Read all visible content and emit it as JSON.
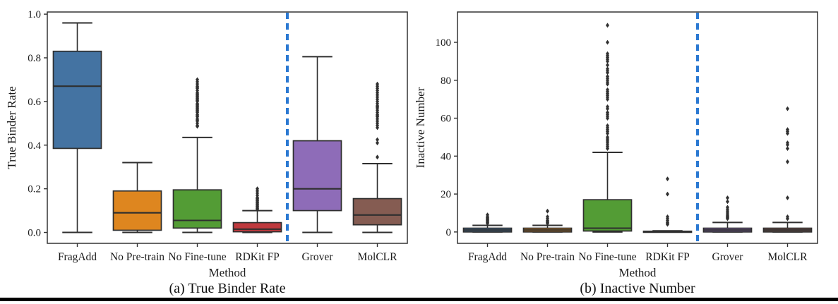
{
  "figure": {
    "bottom_rule_color": "#000000",
    "background": "#ffffff"
  },
  "style": {
    "edge_color": "#2f2f2f",
    "outlier_color": "#2f2f2f",
    "separator_color": "#2b79d2",
    "spine_color": "#333333"
  },
  "chart_data": [
    {
      "type": "boxplot",
      "panel": "a",
      "caption": "(a) True Binder Rate",
      "xlabel": "Method",
      "ylabel": "True Binder Rate",
      "categories": [
        "FragAdd",
        "No Pre-train",
        "No Fine-tune",
        "RDKit FP",
        "Grover",
        "MolCLR"
      ],
      "ytick_labels": [
        "0.0",
        "0.2",
        "0.4",
        "0.6",
        "0.8",
        "1.0"
      ],
      "yticks": [
        0.0,
        0.2,
        0.4,
        0.6,
        0.8,
        1.0
      ],
      "ylim": [
        -0.05,
        1.01
      ],
      "separator_after_index": 3,
      "legend": "none",
      "grid": false,
      "boxes": [
        {
          "label": "FragAdd",
          "color": "#4473a2",
          "whislo": 0.0,
          "q1": 0.385,
          "med": 0.67,
          "q3": 0.83,
          "whishi": 0.96,
          "outliers": []
        },
        {
          "label": "No Pre-train",
          "color": "#de861f",
          "whislo": 0.0,
          "q1": 0.01,
          "med": 0.09,
          "q3": 0.19,
          "whishi": 0.32,
          "outliers": []
        },
        {
          "label": "No Fine-tune",
          "color": "#539c35",
          "whislo": 0.0,
          "q1": 0.02,
          "med": 0.055,
          "q3": 0.195,
          "whishi": 0.435,
          "outliers": [
            0.486,
            0.49,
            0.5,
            0.51,
            0.515,
            0.52,
            0.53,
            0.535,
            0.54,
            0.55,
            0.555,
            0.56,
            0.565,
            0.57,
            0.575,
            0.58,
            0.585,
            0.59,
            0.6,
            0.605,
            0.61,
            0.615,
            0.62,
            0.625,
            0.63,
            0.635,
            0.64,
            0.65,
            0.66,
            0.665,
            0.67,
            0.68,
            0.69,
            0.7
          ]
        },
        {
          "label": "RDKit FP",
          "color": "#bf3a3e",
          "whislo": 0.0,
          "q1": 0.003,
          "med": 0.015,
          "q3": 0.045,
          "whishi": 0.1,
          "outliers": [
            0.105,
            0.11,
            0.115,
            0.12,
            0.125,
            0.13,
            0.135,
            0.14,
            0.145,
            0.15,
            0.155,
            0.16,
            0.17,
            0.18,
            0.19,
            0.2
          ]
        },
        {
          "label": "Grover",
          "color": "#8e6cb8",
          "whislo": 0.0,
          "q1": 0.1,
          "med": 0.2,
          "q3": 0.42,
          "whishi": 0.805,
          "outliers": []
        },
        {
          "label": "MolCLR",
          "color": "#855c52",
          "whislo": 0.0,
          "q1": 0.035,
          "med": 0.08,
          "q3": 0.155,
          "whishi": 0.315,
          "outliers": [
            0.345,
            0.41,
            0.425,
            0.48,
            0.49,
            0.5,
            0.51,
            0.52,
            0.53,
            0.535,
            0.54,
            0.55,
            0.56,
            0.57,
            0.575,
            0.58,
            0.59,
            0.6,
            0.61,
            0.62,
            0.63,
            0.64,
            0.65,
            0.66,
            0.67,
            0.68
          ]
        }
      ]
    },
    {
      "type": "boxplot",
      "panel": "b",
      "caption": "(b) Inactive Number",
      "xlabel": "Method",
      "ylabel": "Inactive Number",
      "categories": [
        "FragAdd",
        "No Pre-train",
        "No Fine-tune",
        "RDKit FP",
        "Grover",
        "MolCLR"
      ],
      "ytick_labels": [
        "0",
        "20",
        "40",
        "60",
        "80",
        "100"
      ],
      "yticks": [
        0,
        20,
        40,
        60,
        80,
        100
      ],
      "ylim": [
        -6,
        116
      ],
      "separator_after_index": 3,
      "legend": "none",
      "grid": false,
      "boxes": [
        {
          "label": "FragAdd",
          "color": "#4473a2",
          "whislo": 0,
          "q1": 0,
          "med": 1,
          "q3": 2,
          "whishi": 3.5,
          "outliers": [
            4.5,
            5,
            5.5,
            6,
            6.5,
            7,
            7.5,
            8,
            9
          ]
        },
        {
          "label": "No Pre-train",
          "color": "#de861f",
          "whislo": 0,
          "q1": 0,
          "med": 1,
          "q3": 2,
          "whishi": 3.5,
          "outliers": [
            4.5,
            5,
            5.5,
            6,
            7,
            8,
            11
          ]
        },
        {
          "label": "No Fine-tune",
          "color": "#539c35",
          "whislo": 0,
          "q1": 0.5,
          "med": 2,
          "q3": 17,
          "whishi": 42,
          "outliers": [
            44,
            45,
            46,
            47,
            48,
            49,
            50,
            52,
            53,
            54,
            55,
            56,
            60,
            61,
            62,
            63,
            65,
            66,
            70,
            71,
            72,
            73,
            74,
            75,
            78,
            79,
            80,
            81,
            82,
            84,
            85,
            86,
            88,
            90,
            91,
            92,
            93,
            94,
            100,
            109
          ]
        },
        {
          "label": "RDKit FP",
          "color": "#bf3a3e",
          "whislo": 0,
          "q1": 0,
          "med": 0.15,
          "q3": 0.4,
          "whishi": 0.6,
          "outliers": [
            4,
            4.5,
            5,
            6,
            7,
            8,
            20,
            28
          ]
        },
        {
          "label": "Grover",
          "color": "#8e6cb8",
          "whislo": 0,
          "q1": 0,
          "med": 1,
          "q3": 2,
          "whishi": 5,
          "outliers": [
            7,
            7.5,
            8,
            8.5,
            9,
            10,
            11,
            12,
            13,
            16,
            18
          ]
        },
        {
          "label": "MolCLR",
          "color": "#855c52",
          "whislo": 0,
          "q1": 0,
          "med": 1,
          "q3": 2,
          "whishi": 5,
          "outliers": [
            7,
            8,
            18,
            37,
            44,
            46,
            47,
            52,
            53,
            54,
            65
          ]
        }
      ]
    }
  ]
}
